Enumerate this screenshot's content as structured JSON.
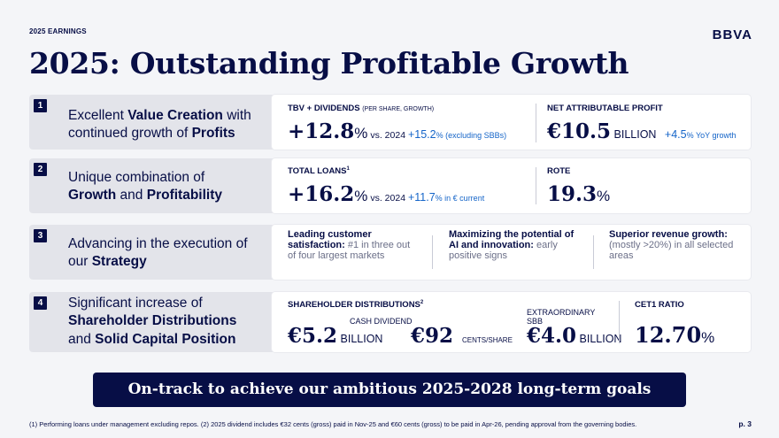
{
  "header": {
    "tag": "2025 EARNINGS",
    "logo": "BBVA",
    "title": "2025: Outstanding Profitable Growth"
  },
  "rows": [
    {
      "number": "1",
      "label": {
        "p1": "Excellent ",
        "b1": "Value Creation",
        "p2": " with",
        "p3": "continued growth of ",
        "b2": "Profits"
      },
      "tbv": {
        "caption": "TBV + DIVIDENDS",
        "caption_small": "(PER SHARE, GROWTH)",
        "value": "+12.8",
        "pct": "%",
        "vs": " vs. 2024 ",
        "growth": "+15.2",
        "growth_pct": "%",
        "note": " (excluding SBBs)"
      },
      "profit": {
        "caption": "NET ATTRIBUTABLE PROFIT",
        "value": "€10.5",
        "unit": " BILLION ",
        "growth": "+4.5",
        "growth_pct": "%",
        "note": " YoY growth"
      }
    },
    {
      "number": "2",
      "label": {
        "l1": "Unique combination of",
        "b1": "Growth",
        "p2": " and ",
        "b2": "Profitability"
      },
      "loans": {
        "caption": "TOTAL LOANS",
        "sup": "1",
        "value": "+16.2",
        "pct": "%",
        "vs": " vs. 2024 ",
        "growth": "+11.7",
        "growth_pct": "%",
        "note": " in € current"
      },
      "rote": {
        "caption": "ROTE",
        "value": "19.3",
        "pct": "%"
      }
    },
    {
      "number": "3",
      "label": {
        "l1": "Advancing in the execution of",
        "p2": "our ",
        "b2": "Strategy"
      },
      "items": [
        {
          "bold": "Leading customer satisfaction:",
          "text": " #1 in three out of four largest markets"
        },
        {
          "bold": "Maximizing the potential of AI and innovation:",
          "text": " early positive signs"
        },
        {
          "bold": "Superior revenue growth:",
          "text": " (mostly >20%) in all selected areas"
        }
      ]
    },
    {
      "number": "4",
      "label": {
        "l1": "Significant increase of",
        "b1": "Shareholder Distributions",
        "p3": "and ",
        "b3": "Solid Capital Position"
      },
      "dist": {
        "caption": "SHAREHOLDER DISTRIBUTIONS",
        "sup": "2",
        "value": "€5.2",
        "unit": " BILLION"
      },
      "cash": {
        "caption": "CASH DIVIDEND",
        "value": "€92",
        "unit": "CENTS/SHARE"
      },
      "sbb": {
        "caption1": "EXTRAORDINARY",
        "caption2": "SBB",
        "value": "€4.0",
        "unit": " BILLION"
      },
      "cet1": {
        "caption": "CET1 RATIO",
        "value": "12.70",
        "pct": "%"
      }
    }
  ],
  "banner": "On-track to achieve our ambitious 2025-2028 long-term goals",
  "footnote": "(1) Performing loans under management excluding repos. (2) 2025 dividend includes €32 cents (gross) paid in Nov-25 and €60 cents (gross) to be paid in Apr-26, pending approval from the governing bodies.",
  "page": "p. 3",
  "colors": {
    "navy": "#070e46",
    "accent_blue": "#1464c8",
    "panel": "#e3e4ea",
    "background": "#f4f5f8"
  }
}
